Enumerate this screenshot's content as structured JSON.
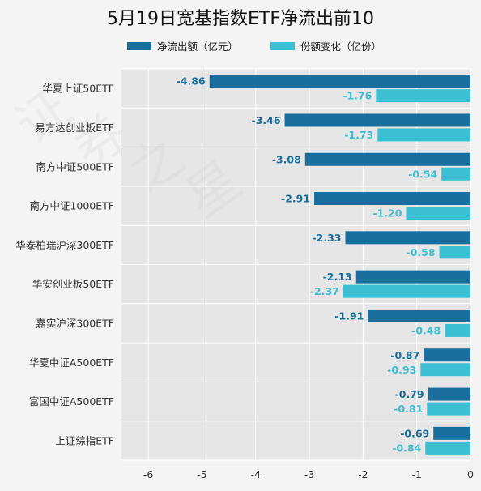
{
  "chart_data": {
    "type": "bar",
    "orientation": "horizontal",
    "title": "5月19日宽基指数ETF净流出前10",
    "categories": [
      "华夏上证50ETF",
      "易方达创业板ETF",
      "南方中证500ETF",
      "南方中证1000ETF",
      "华泰柏瑞沪深300ETF",
      "华安创业板50ETF",
      "嘉实沪深300ETF",
      "华夏中证A500ETF",
      "富国中证A500ETF",
      "上证综指ETF"
    ],
    "series": [
      {
        "name": "净流出额（亿元）",
        "color": "#1a6e9e",
        "values": [
          -4.86,
          -3.46,
          -3.08,
          -2.91,
          -2.33,
          -2.13,
          -1.91,
          -0.87,
          -0.79,
          -0.69
        ],
        "labels": [
          "-4.86",
          "-3.46",
          "-3.08",
          "-2.91",
          "-2.33",
          "-2.13",
          "-1.91",
          "-0.87",
          "-0.79",
          "-0.69"
        ]
      },
      {
        "name": "份额变化（亿份）",
        "color": "#3bbfd2",
        "values": [
          -1.76,
          -1.73,
          -0.54,
          -1.2,
          -0.58,
          -2.37,
          -0.48,
          -0.93,
          -0.81,
          -0.84
        ],
        "labels": [
          "-1.76",
          "-1.73",
          "-0.54",
          "-1.20",
          "-0.58",
          "-2.37",
          "-0.48",
          "-0.93",
          "-0.81",
          "-0.84"
        ]
      }
    ],
    "xlim": [
      -6.5,
      0
    ],
    "xticks": [
      -6,
      -5,
      -4,
      -3,
      -2,
      -1,
      0
    ],
    "xtick_labels": [
      "-6",
      "-5",
      "-4",
      "-3",
      "-2",
      "-1",
      "0"
    ],
    "xlabel": "",
    "ylabel": "",
    "grid": true,
    "legend_position": "top",
    "plot_background": "#e6e6e6",
    "grid_color": "#ffffff"
  }
}
